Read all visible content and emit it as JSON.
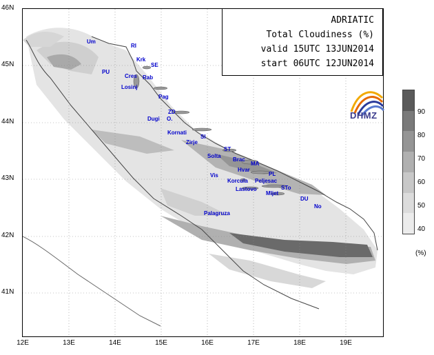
{
  "title": {
    "line1": "ADRIATIC",
    "line2": "Total Cloudiness (%)",
    "line3": "valid 15UTC 13JUN2014",
    "line4": "start 06UTC 12JUN2014"
  },
  "axes": {
    "latitudes": [
      "46N",
      "45N",
      "44N",
      "43N",
      "42N",
      "41N"
    ],
    "longitudes": [
      "12E",
      "13E",
      "14E",
      "15E",
      "16E",
      "17E",
      "18E",
      "19E"
    ]
  },
  "legend": {
    "ticks": [
      "90",
      "80",
      "70",
      "60",
      "50",
      "40"
    ],
    "unit": "(%)",
    "colors": [
      "#5a5a5a",
      "#7a7a7a",
      "#959595",
      "#b0b0b0",
      "#c8c8c8",
      "#dcdcdc",
      "#ececec"
    ]
  },
  "places": [
    {
      "name": "Um"
    },
    {
      "name": "RI"
    },
    {
      "name": "Krk"
    },
    {
      "name": "SE"
    },
    {
      "name": "PU"
    },
    {
      "name": "Cres"
    },
    {
      "name": "Rab"
    },
    {
      "name": "Losinj"
    },
    {
      "name": "Pag"
    },
    {
      "name": "ZD"
    },
    {
      "name": "Dugi"
    },
    {
      "name": "O."
    },
    {
      "name": "Kornati"
    },
    {
      "name": "SI"
    },
    {
      "name": "Zirje"
    },
    {
      "name": "ST"
    },
    {
      "name": "Solta"
    },
    {
      "name": "Brac"
    },
    {
      "name": "MA"
    },
    {
      "name": "Hvar"
    },
    {
      "name": "PL"
    },
    {
      "name": "Vis"
    },
    {
      "name": "Korcula"
    },
    {
      "name": "Peljesac"
    },
    {
      "name": "Lastovo"
    },
    {
      "name": "Mljet"
    },
    {
      "name": "STo"
    },
    {
      "name": "DU"
    },
    {
      "name": "No"
    },
    {
      "name": "Palagruza"
    }
  ],
  "logo": {
    "text": "DHMZ"
  }
}
